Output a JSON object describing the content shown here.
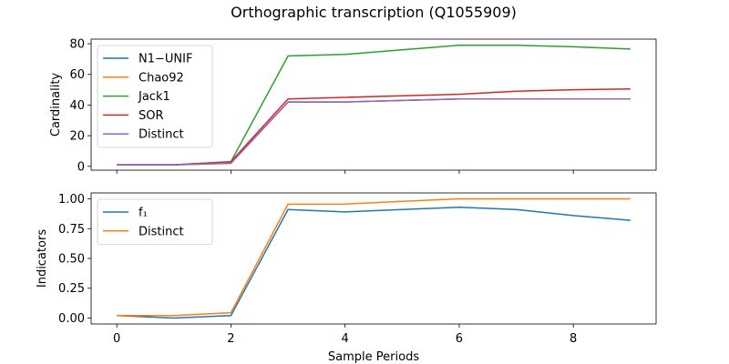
{
  "figure_title": "Orthographic transcription (Q1055909)",
  "chart_data": [
    {
      "type": "line",
      "title": "",
      "xlabel": "",
      "ylabel": "Cardinality",
      "xlim": [
        -0.45,
        9.45
      ],
      "ylim": [
        -2.5,
        83
      ],
      "xticks": [
        0,
        2,
        4,
        6,
        8
      ],
      "yticks": [
        0,
        20,
        40,
        60,
        80
      ],
      "show_xtick_labels": false,
      "grid": false,
      "legend_position": "upper-left",
      "x": [
        0,
        1,
        2,
        3,
        4,
        5,
        6,
        7,
        8,
        9
      ],
      "series": [
        {
          "name": "N1−UNIF",
          "color": "#1f77b4",
          "values": [
            1,
            1,
            2,
            42,
            42,
            43,
            44,
            44,
            44,
            44
          ]
        },
        {
          "name": "Chao92",
          "color": "#ff7f0e",
          "values": [
            1,
            1,
            2,
            42,
            42,
            43,
            44,
            44,
            44,
            44
          ]
        },
        {
          "name": "Jack1",
          "color": "#2ca02c",
          "values": [
            1,
            1,
            3,
            72,
            73,
            76,
            79,
            79,
            78,
            76.5
          ]
        },
        {
          "name": "SOR",
          "color": "#d62728",
          "values": [
            1,
            1,
            3,
            44,
            45,
            46,
            47,
            49,
            50,
            50.5
          ]
        },
        {
          "name": "Distinct",
          "color": "#9467bd",
          "values": [
            1,
            1,
            2,
            42,
            42,
            43,
            44,
            44,
            44,
            44
          ]
        }
      ]
    },
    {
      "type": "line",
      "title": "",
      "xlabel": "Sample Periods",
      "ylabel": "Indicators",
      "xlim": [
        -0.45,
        9.45
      ],
      "ylim": [
        -0.05,
        1.05
      ],
      "xticks": [
        0,
        2,
        4,
        6,
        8
      ],
      "yticks": [
        0.0,
        0.25,
        0.5,
        0.75,
        1.0
      ],
      "show_xtick_labels": true,
      "grid": false,
      "legend_position": "upper-left",
      "x": [
        0,
        1,
        2,
        3,
        4,
        5,
        6,
        7,
        8,
        9
      ],
      "series": [
        {
          "name": "f₁",
          "color": "#1f77b4",
          "values": [
            0.02,
            0.0,
            0.02,
            0.91,
            0.89,
            0.91,
            0.93,
            0.91,
            0.86,
            0.82
          ]
        },
        {
          "name": "Distinct",
          "color": "#ff7f0e",
          "values": [
            0.02,
            0.02,
            0.045,
            0.955,
            0.957,
            0.98,
            1.0,
            1.0,
            1.0,
            1.0
          ]
        }
      ]
    }
  ]
}
